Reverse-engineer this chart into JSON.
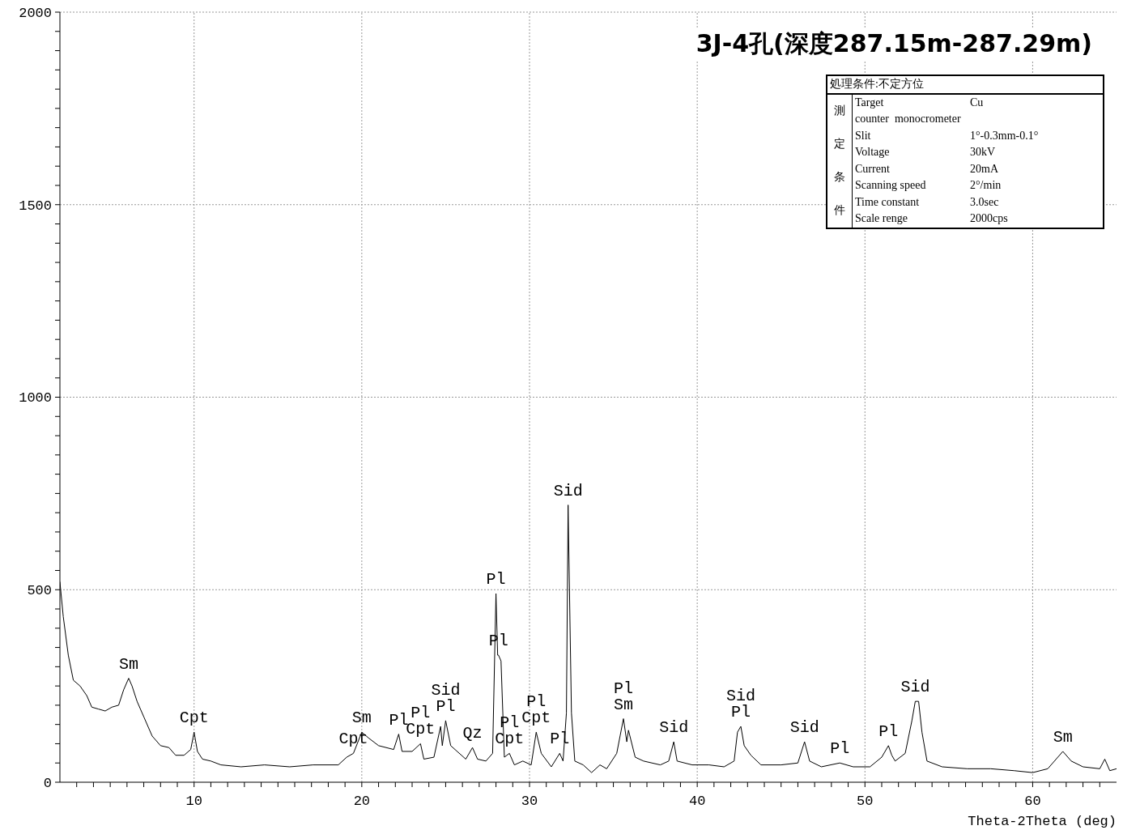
{
  "chart_data": {
    "type": "line",
    "title": "3J-4孔(深度287.15m-287.29m)",
    "xlabel": "Theta-2Theta (deg)",
    "xlim": [
      2,
      65
    ],
    "xticks": [
      {
        "value": 3,
        "label": null
      },
      {
        "value": 4,
        "label": null
      },
      {
        "value": 5,
        "label": null
      },
      {
        "value": 6,
        "label": null
      },
      {
        "value": 7,
        "label": null
      },
      {
        "value": 8,
        "label": null
      },
      {
        "value": 9,
        "label": null
      },
      10,
      {
        "value": 11,
        "label": null
      },
      {
        "value": 12,
        "label": null
      },
      {
        "value": 13,
        "label": null
      },
      {
        "value": 14,
        "label": null
      },
      {
        "value": 15,
        "label": null
      },
      {
        "value": 16,
        "label": null
      },
      {
        "value": 17,
        "label": null
      },
      {
        "value": 18,
        "label": null
      },
      {
        "value": 19,
        "label": null
      },
      20,
      {
        "value": 21,
        "label": null
      },
      {
        "value": 22,
        "label": null
      },
      {
        "value": 23,
        "label": null
      },
      {
        "value": 24,
        "label": null
      },
      {
        "value": 25,
        "label": null
      },
      {
        "value": 26,
        "label": null
      },
      {
        "value": 27,
        "label": null
      },
      {
        "value": 28,
        "label": null
      },
      {
        "value": 29,
        "label": null
      },
      30,
      {
        "value": 31,
        "label": null
      },
      {
        "value": 32,
        "label": null
      },
      {
        "value": 33,
        "label": null
      },
      {
        "value": 34,
        "label": null
      },
      {
        "value": 35,
        "label": null
      },
      {
        "value": 36,
        "label": null
      },
      {
        "value": 37,
        "label": null
      },
      {
        "value": 38,
        "label": null
      },
      {
        "value": 39,
        "label": null
      },
      40,
      {
        "value": 41,
        "label": null
      },
      {
        "value": 42,
        "label": null
      },
      {
        "value": 43,
        "label": null
      },
      {
        "value": 44,
        "label": null
      },
      {
        "value": 45,
        "label": null
      },
      {
        "value": 46,
        "label": null
      },
      {
        "value": 47,
        "label": null
      },
      {
        "value": 48,
        "label": null
      },
      {
        "value": 49,
        "label": null
      },
      50,
      {
        "value": 51,
        "label": null
      },
      {
        "value": 52,
        "label": null
      },
      {
        "value": 53,
        "label": null
      },
      {
        "value": 54,
        "label": null
      },
      {
        "value": 55,
        "label": null
      },
      {
        "value": 56,
        "label": null
      },
      {
        "value": 57,
        "label": null
      },
      {
        "value": 58,
        "label": null
      },
      {
        "value": 59,
        "label": null
      },
      60,
      {
        "value": 61,
        "label": null
      },
      {
        "value": 62,
        "label": null
      },
      {
        "value": 63,
        "label": null
      },
      {
        "value": 64,
        "label": null
      }
    ],
    "ylim": [
      0,
      2000
    ],
    "yticks": [
      0,
      {
        "value": 50,
        "label": null
      },
      {
        "value": 100,
        "label": null
      },
      {
        "value": 150,
        "label": null
      },
      {
        "value": 200,
        "label": null
      },
      {
        "value": 250,
        "label": null
      },
      {
        "value": 300,
        "label": null
      },
      {
        "value": 350,
        "label": null
      },
      {
        "value": 400,
        "label": null
      },
      {
        "value": 450,
        "label": null
      },
      500,
      {
        "value": 550,
        "label": null
      },
      {
        "value": 600,
        "label": null
      },
      {
        "value": 650,
        "label": null
      },
      {
        "value": 700,
        "label": null
      },
      {
        "value": 750,
        "label": null
      },
      {
        "value": 800,
        "label": null
      },
      {
        "value": 850,
        "label": null
      },
      {
        "value": 900,
        "label": null
      },
      {
        "value": 950,
        "label": null
      },
      1000,
      {
        "value": 1050,
        "label": null
      },
      {
        "value": 1100,
        "label": null
      },
      {
        "value": 1150,
        "label": null
      },
      {
        "value": 1200,
        "label": null
      },
      {
        "value": 1250,
        "label": null
      },
      {
        "value": 1300,
        "label": null
      },
      {
        "value": 1350,
        "label": null
      },
      {
        "value": 1400,
        "label": null
      },
      {
        "value": 1450,
        "label": null
      },
      1500,
      {
        "value": 1550,
        "label": null
      },
      {
        "value": 1600,
        "label": null
      },
      {
        "value": 1650,
        "label": null
      },
      {
        "value": 1700,
        "label": null
      },
      {
        "value": 1750,
        "label": null
      },
      {
        "value": 1800,
        "label": null
      },
      {
        "value": 1850,
        "label": null
      },
      {
        "value": 1900,
        "label": null
      },
      {
        "value": 1950,
        "label": null
      },
      2000
    ],
    "grid": true,
    "series": [
      {
        "color": "#000000",
        "x": [
          2.0,
          2.2,
          2.5,
          2.8,
          3.2,
          3.6,
          3.9,
          4.3,
          4.7,
          5.1,
          5.5,
          5.8,
          6.1,
          6.3,
          6.6,
          7.0,
          7.5,
          8.0,
          8.5,
          8.9,
          9.4,
          9.8,
          10.0,
          10.2,
          10.5,
          11.0,
          11.6,
          12.8,
          14.2,
          15.7,
          17.1,
          18.6,
          19.1,
          19.5,
          20.0,
          20.4,
          21.0,
          21.9,
          22.2,
          22.4,
          23.0,
          23.5,
          23.7,
          24.3,
          24.7,
          24.8,
          25.0,
          25.3,
          26.2,
          26.6,
          26.9,
          27.4,
          27.8,
          28.0,
          28.1,
          28.15,
          28.3,
          28.5,
          28.8,
          29.1,
          29.6,
          30.1,
          30.4,
          30.7,
          31.3,
          31.8,
          32.0,
          32.2,
          32.3,
          32.5,
          32.7,
          33.2,
          33.7,
          34.2,
          34.6,
          35.2,
          35.4,
          35.6,
          35.8,
          35.9,
          36.3,
          36.8,
          37.8,
          38.3,
          38.6,
          38.8,
          39.7,
          40.7,
          41.6,
          42.2,
          42.4,
          42.6,
          42.8,
          43.2,
          43.8,
          45.0,
          46.0,
          46.4,
          46.7,
          47.4,
          48.5,
          49.3,
          50.3,
          51.0,
          51.4,
          51.6,
          51.8,
          52.4,
          52.8,
          53.0,
          53.2,
          53.4,
          53.7,
          54.6,
          56.1,
          57.5,
          58.9,
          60.0,
          60.9,
          61.8,
          62.3,
          63.0,
          64.0,
          64.3,
          64.6,
          65.0
        ],
        "values": [
          520,
          430,
          330,
          265,
          250,
          225,
          195,
          190,
          185,
          195,
          200,
          240,
          270,
          250,
          210,
          170,
          120,
          95,
          90,
          70,
          70,
          85,
          130,
          80,
          60,
          55,
          45,
          40,
          45,
          40,
          45,
          45,
          65,
          75,
          130,
          115,
          95,
          85,
          125,
          80,
          80,
          100,
          60,
          65,
          145,
          95,
          160,
          95,
          60,
          90,
          60,
          55,
          75,
          490,
          330,
          330,
          315,
          65,
          75,
          45,
          55,
          45,
          130,
          75,
          40,
          75,
          55,
          180,
          720,
          180,
          55,
          45,
          25,
          45,
          35,
          75,
          120,
          165,
          105,
          135,
          65,
          55,
          45,
          55,
          105,
          55,
          45,
          45,
          40,
          55,
          130,
          145,
          95,
          70,
          45,
          45,
          50,
          105,
          55,
          40,
          50,
          40,
          40,
          65,
          95,
          70,
          55,
          75,
          160,
          210,
          210,
          130,
          55,
          40,
          35,
          35,
          30,
          25,
          35,
          80,
          55,
          40,
          35,
          60,
          30,
          35
        ]
      }
    ],
    "annotations": [
      "処理条件:不定方位",
      "測定条件",
      "Target\tCu",
      "counter  monocrometer",
      "Slit\t1°-0.3mm-0.1°",
      "Voltage\t30kV",
      "Current\t20mA",
      "Scanning speed\t2°/min",
      "Time constant\t3.0sec",
      "Scale renge\t2000cps",
      {
        "text": "Sm",
        "x": 6.1,
        "y": 270
      },
      {
        "text": "Cpt",
        "x": 10.0,
        "y": 130
      },
      {
        "text": "Cpt",
        "x": 19.5,
        "y": 75
      },
      {
        "text": "Sm",
        "x": 20.0,
        "y": 130
      },
      {
        "text": "Pl",
        "x": 22.2,
        "y": 125
      },
      {
        "text": "Cpt",
        "x": 23.5,
        "y": 100
      },
      {
        "text": "Pl",
        "x": 23.5,
        "y": 100
      },
      {
        "text": "Pl",
        "x": 25.0,
        "y": 160
      },
      {
        "text": "Sid",
        "x": 25.0,
        "y": 160
      },
      {
        "text": "Qz",
        "x": 26.6,
        "y": 90
      },
      {
        "text": "Pl",
        "x": 28.0,
        "y": 490
      },
      {
        "text": "Pl",
        "x": 28.15,
        "y": 330
      },
      {
        "text": "Cpt",
        "x": 28.8,
        "y": 75
      },
      {
        "text": "Pl",
        "x": 28.8,
        "y": 75
      },
      {
        "text": "Cpt",
        "x": 30.4,
        "y": 130
      },
      {
        "text": "Pl",
        "x": 30.4,
        "y": 130
      },
      {
        "text": "Pl",
        "x": 31.8,
        "y": 75
      },
      {
        "text": "Sid",
        "x": 32.3,
        "y": 720
      },
      {
        "text": "Sm",
        "x": 35.6,
        "y": 165
      },
      {
        "text": "Pl",
        "x": 35.6,
        "y": 165
      },
      {
        "text": "Sid",
        "x": 38.6,
        "y": 105
      },
      {
        "text": "Pl",
        "x": 42.6,
        "y": 145
      },
      {
        "text": "Sid",
        "x": 42.6,
        "y": 145
      },
      {
        "text": "Sid",
        "x": 46.4,
        "y": 105
      },
      {
        "text": "Pl",
        "x": 48.5,
        "y": 50
      },
      {
        "text": "Pl",
        "x": 51.4,
        "y": 95
      },
      {
        "text": "Sid",
        "x": 53.0,
        "y": 210
      },
      {
        "text": "Sm",
        "x": 61.8,
        "y": 80
      }
    ]
  }
}
